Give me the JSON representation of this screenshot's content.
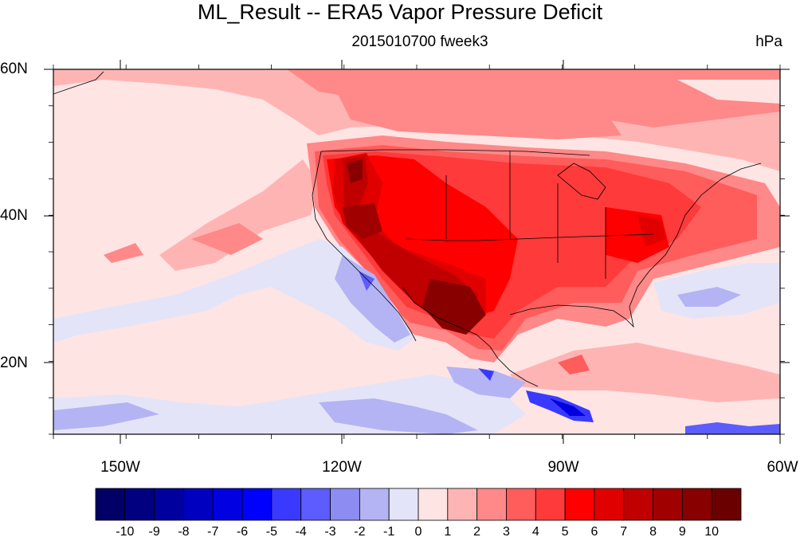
{
  "title": "ML_Result -- ERA5 Vapor Pressure Deficit",
  "subtitle_center": "2015010700 fweek3",
  "subtitle_right": "hPa",
  "lat_ticks": [
    "60N",
    "40N",
    "20N"
  ],
  "lon_ticks": [
    "150W",
    "120W",
    "90W",
    "60W"
  ],
  "colorbar": {
    "labels": [
      "-10",
      "-9",
      "-8",
      "-7",
      "-6",
      "-5",
      "-4",
      "-3",
      "-2",
      "-1",
      "0",
      "1",
      "2",
      "3",
      "4",
      "5",
      "6",
      "7",
      "8",
      "9",
      "10"
    ],
    "colors": [
      "#000066",
      "#000080",
      "#00009e",
      "#0000c0",
      "#0000e0",
      "#0000ff",
      "#3a3aff",
      "#5c5cff",
      "#8c8cf2",
      "#b4b4f4",
      "#e4e4f8",
      "#ffe4e4",
      "#ffb4b4",
      "#ff8888",
      "#ff5c5c",
      "#ff3a3a",
      "#ff0000",
      "#e00000",
      "#c00000",
      "#a00000",
      "#880000",
      "#6a0000"
    ]
  },
  "chart_data": {
    "type": "heatmap",
    "variable": "Vapor Pressure Deficit",
    "units": "hPa",
    "lat_range": [
      10,
      60
    ],
    "lon_range": [
      -160,
      -60
    ],
    "levels": [
      -10,
      -9,
      -8,
      -7,
      -6,
      -5,
      -4,
      -3,
      -2,
      -1,
      0,
      1,
      2,
      3,
      4,
      5,
      6,
      7,
      8,
      9,
      10
    ]
  }
}
